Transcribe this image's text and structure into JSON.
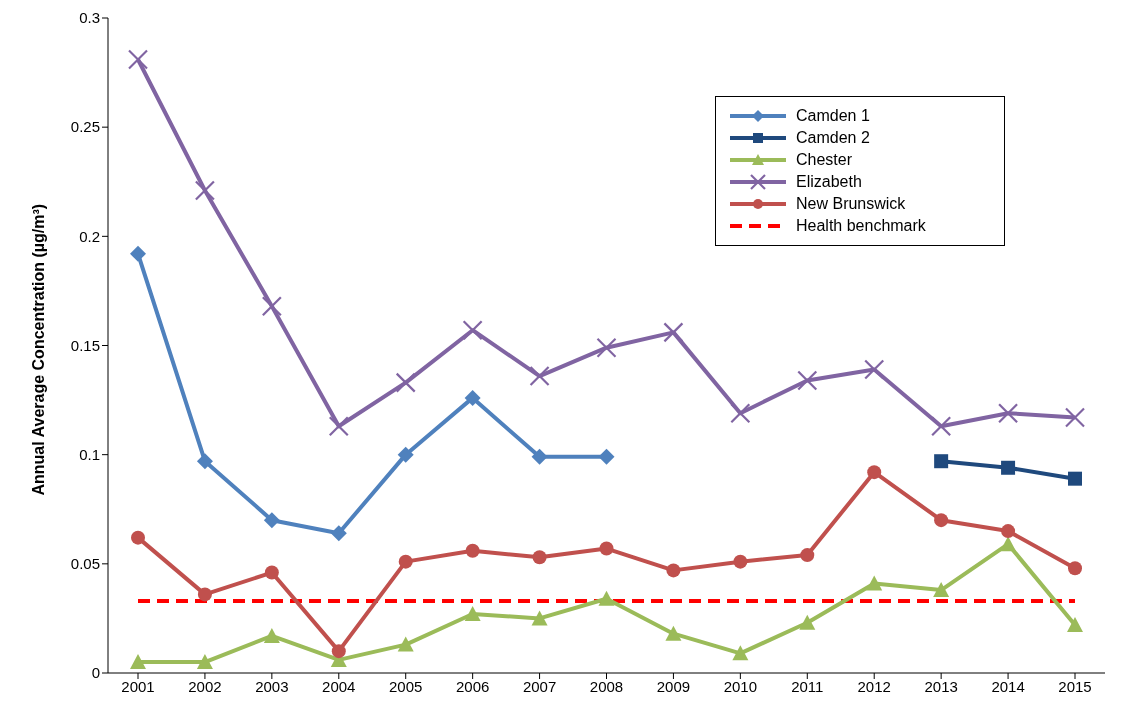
{
  "chart_data": {
    "type": "line",
    "ylabel": "Annual Average Concentration (µg/m³)",
    "categories": [
      "2001",
      "2002",
      "2003",
      "2004",
      "2005",
      "2006",
      "2007",
      "2008",
      "2009",
      "2010",
      "2011",
      "2012",
      "2013",
      "2014",
      "2015"
    ],
    "series": [
      {
        "name": "Camden 1",
        "color": "#4f81bd",
        "marker": "diamond",
        "values": [
          0.192,
          0.097,
          0.07,
          0.064,
          0.1,
          0.126,
          0.099,
          0.099,
          null,
          null,
          null,
          null,
          null,
          null,
          null
        ]
      },
      {
        "name": "Camden 2",
        "color": "#1f497d",
        "marker": "square",
        "values": [
          null,
          null,
          null,
          null,
          null,
          null,
          null,
          null,
          null,
          null,
          null,
          null,
          0.097,
          0.094,
          0.089
        ]
      },
      {
        "name": "Chester",
        "color": "#9bbb59",
        "marker": "triangle",
        "values": [
          0.005,
          0.005,
          0.017,
          0.006,
          0.013,
          0.027,
          0.025,
          0.034,
          0.018,
          0.009,
          0.023,
          0.041,
          0.038,
          0.059,
          0.022
        ]
      },
      {
        "name": "Elizabeth",
        "color": "#8064a2",
        "marker": "cross",
        "values": [
          0.281,
          0.221,
          0.168,
          0.113,
          0.133,
          0.157,
          0.136,
          0.149,
          0.156,
          0.119,
          0.134,
          0.139,
          0.113,
          0.119,
          0.117
        ]
      },
      {
        "name": "New Brunswick",
        "color": "#c0504d",
        "marker": "circle",
        "values": [
          0.062,
          0.036,
          0.046,
          0.01,
          0.051,
          0.056,
          0.053,
          0.057,
          0.047,
          0.051,
          0.054,
          0.092,
          0.07,
          0.065,
          0.048
        ]
      }
    ],
    "ref_lines": [
      {
        "axis": "y",
        "value": 0.033,
        "label": "Health benchmark",
        "color": "#ff0000",
        "line_style": "dashed"
      }
    ],
    "ylim": [
      0,
      0.3
    ],
    "yticks": [
      0,
      0.05,
      0.1,
      0.15,
      0.2,
      0.25,
      0.3
    ],
    "grid": false,
    "legend": "top right",
    "line_style": "solid"
  }
}
